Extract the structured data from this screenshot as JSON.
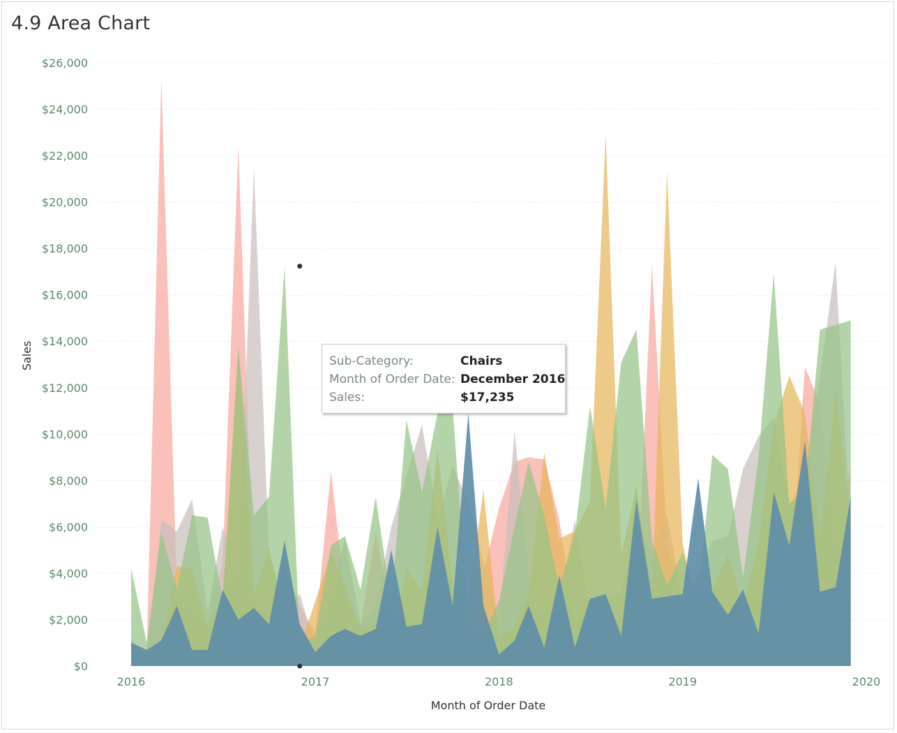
{
  "title": "4.9 Area Chart",
  "tooltip": {
    "rows": [
      {
        "key": "Sub-Category:",
        "value": "Chairs"
      },
      {
        "key": "Month of Order Date:",
        "value": "December 2016"
      },
      {
        "key": "Sales:",
        "value": "$17,235"
      }
    ]
  },
  "colors": {
    "series": [
      "#f7a9a0",
      "#c9bfbd",
      "#e6b55a",
      "#95c487",
      "#5f8ea8"
    ],
    "tick_text": "#5b8a6a",
    "gridline": "#d8d8d8"
  },
  "chart_data": {
    "type": "area",
    "title": "4.9 Area Chart",
    "xlabel": "Month of Order Date",
    "ylabel": "Sales",
    "x_ticks": [
      "2016",
      "2017",
      "2018",
      "2019",
      "2020"
    ],
    "y_ticks": [
      "$0",
      "$2,000",
      "$4,000",
      "$6,000",
      "$8,000",
      "$10,000",
      "$12,000",
      "$14,000",
      "$16,000",
      "$18,000",
      "$20,000",
      "$22,000",
      "$24,000",
      "$26,000"
    ],
    "ylim": [
      0,
      26000
    ],
    "xlim": [
      "2016-01",
      "2020-01"
    ],
    "grid": "horizontal dotted",
    "x": [
      "2016-01",
      "2016-02",
      "2016-03",
      "2016-04",
      "2016-05",
      "2016-06",
      "2016-07",
      "2016-08",
      "2016-09",
      "2016-10",
      "2016-11",
      "2016-12",
      "2017-01",
      "2017-02",
      "2017-03",
      "2017-04",
      "2017-05",
      "2017-06",
      "2017-07",
      "2017-08",
      "2017-09",
      "2017-10",
      "2017-11",
      "2017-12",
      "2018-01",
      "2018-02",
      "2018-03",
      "2018-04",
      "2018-05",
      "2018-06",
      "2018-07",
      "2018-08",
      "2018-09",
      "2018-10",
      "2018-11",
      "2018-12",
      "2019-01",
      "2019-02",
      "2019-03",
      "2019-04",
      "2019-05",
      "2019-06",
      "2019-07",
      "2019-08",
      "2019-09",
      "2019-10",
      "2019-11",
      "2019-12"
    ],
    "series": [
      {
        "values": [
          900,
          600,
          25300,
          3300,
          2500,
          1800,
          4500,
          22400,
          3000,
          2200,
          4200,
          2600,
          1400,
          8400,
          3100,
          1700,
          5800,
          2100,
          2200,
          1900,
          2900,
          2300,
          1800,
          4000,
          6800,
          8800,
          9000,
          8900,
          6300,
          1800,
          2900,
          3100,
          2200,
          2400,
          17300,
          5400,
          2300,
          4100,
          2400,
          1900,
          2700,
          3000,
          3500,
          2600,
          12900,
          11300,
          5100,
          8600
        ]
      },
      {
        "values": [
          1200,
          400,
          6300,
          5800,
          7200,
          2300,
          6000,
          3800,
          21500,
          4700,
          2500,
          3100,
          900,
          2900,
          5500,
          1800,
          2600,
          6000,
          8200,
          10400,
          6300,
          8600,
          7100,
          4500,
          1900,
          10100,
          3900,
          2100,
          2700,
          6300,
          2200,
          3000,
          3100,
          6100,
          4800,
          6500,
          2800,
          3800,
          5400,
          5600,
          8500,
          9900,
          10700,
          6900,
          8200,
          12500,
          17400,
          5600
        ]
      },
      {
        "values": [
          1000,
          700,
          1100,
          4300,
          4200,
          1700,
          2900,
          13600,
          3100,
          5100,
          2300,
          800,
          2800,
          4900,
          3500,
          1600,
          1800,
          500,
          4200,
          3200,
          9400,
          3500,
          2700,
          7600,
          1200,
          1700,
          3000,
          9200,
          5500,
          5800,
          7100,
          22900,
          4800,
          7800,
          3100,
          21300,
          5300,
          2200,
          3300,
          4800,
          2600,
          5300,
          10400,
          12500,
          10900,
          5400,
          12000,
          5800
        ]
      },
      {
        "values": [
          4200,
          1000,
          5800,
          3300,
          6500,
          6400,
          2800,
          13800,
          6500,
          7300,
          17200,
          900,
          1300,
          5200,
          5600,
          3300,
          7300,
          2700,
          10600,
          7500,
          10900,
          11100,
          1900,
          1300,
          2800,
          6000,
          8800,
          6500,
          3400,
          5700,
          11200,
          6800,
          13100,
          14500,
          5400,
          3500,
          4900,
          2900,
          9100,
          8500,
          3800,
          9000,
          16900,
          7000,
          7500,
          14500,
          14700,
          14900
        ]
      },
      {
        "values": [
          1000,
          700,
          1100,
          2600,
          700,
          700,
          3300,
          2000,
          2500,
          1800,
          5400,
          1800,
          600,
          1300,
          1600,
          1300,
          1600,
          5000,
          1700,
          1800,
          6000,
          2600,
          10900,
          2600,
          500,
          1100,
          2600,
          800,
          3900,
          800,
          2900,
          3100,
          1300,
          7200,
          2900,
          3000,
          3100,
          8100,
          3200,
          2200,
          3300,
          1400,
          7500,
          5200,
          9700,
          3200,
          3400,
          7300
        ]
      }
    ],
    "highlight": {
      "series": "Chairs",
      "x": "2016-12",
      "y": 17235
    }
  }
}
